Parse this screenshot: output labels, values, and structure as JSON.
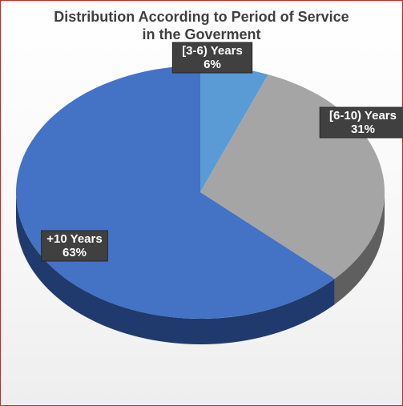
{
  "chart_data": {
    "type": "pie",
    "style": "3d",
    "title_lines": [
      "Distribution According to Period of Service",
      "in the Goverment"
    ],
    "categories": [
      "[3-6) Years",
      "[6-10) Years",
      "+10 Years"
    ],
    "values": [
      6,
      31,
      63
    ],
    "value_labels": [
      "6%",
      "31%",
      "63%"
    ],
    "colors": [
      "#5b9bd5",
      "#a5a5a5",
      "#4472c4"
    ],
    "dark_colors": [
      "#3a6fa0",
      "#5f5f5f",
      "#213a6e"
    ],
    "legend": "none"
  }
}
